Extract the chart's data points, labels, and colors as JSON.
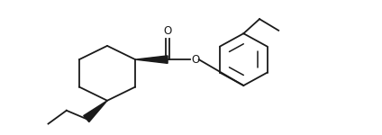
{
  "bg_color": "#ffffff",
  "line_color": "#1a1a1a",
  "line_width": 1.3,
  "fig_width": 4.24,
  "fig_height": 1.5,
  "dpi": 100,
  "xlim": [
    0,
    10.0
  ],
  "ylim": [
    0,
    3.5
  ]
}
